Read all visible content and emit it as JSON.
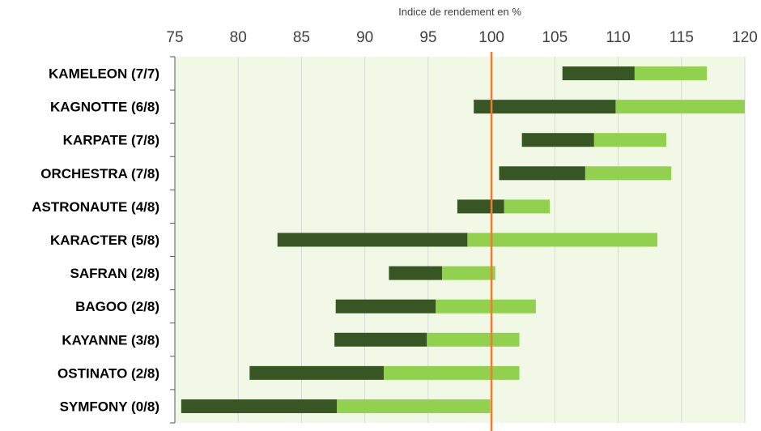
{
  "chart_data": {
    "type": "bar",
    "orientation": "horizontal",
    "stacked": "floating",
    "xlabel": "Indice de rendement en %",
    "xlim": [
      75,
      120
    ],
    "x_ticks": [
      "75",
      "80",
      "85",
      "90",
      "95",
      "100",
      "105",
      "110",
      "115",
      "120"
    ],
    "reference_line": 100,
    "categories": [
      "KAMELEON (7/7)",
      "KAGNOTTE (6/8)",
      "KARPATE (7/8)",
      "ORCHESTRA (7/8)",
      "ASTRONAUTE (4/8)",
      "KARACTER (5/8)",
      "SAFRAN (2/8)",
      "BAGOO (2/8)",
      "KAYANNE (3/8)",
      "OSTINATO (2/8)",
      "SYMFONY (0/8)"
    ],
    "ranges": [
      {
        "min": 105.6,
        "mid": 111.3,
        "max": 117.0
      },
      {
        "min": 98.6,
        "mid": 109.8,
        "max": 120.0
      },
      {
        "min": 102.4,
        "mid": 108.1,
        "max": 113.8
      },
      {
        "min": 100.6,
        "mid": 107.4,
        "max": 114.2
      },
      {
        "min": 97.3,
        "mid": 101.0,
        "max": 104.6
      },
      {
        "min": 83.1,
        "mid": 98.1,
        "max": 113.1
      },
      {
        "min": 91.9,
        "mid": 96.1,
        "max": 100.3
      },
      {
        "min": 87.7,
        "mid": 95.6,
        "max": 103.5
      },
      {
        "min": 87.6,
        "mid": 94.9,
        "max": 102.2
      },
      {
        "min": 80.9,
        "mid": 91.5,
        "max": 102.2
      },
      {
        "min": 75.5,
        "mid": 87.8,
        "max": 99.9
      }
    ],
    "colors": {
      "lower_segment": "#375623",
      "upper_segment": "#92D050",
      "plot_background": "#F1F9E6",
      "gridline": "#D9D9D9",
      "reference_line": "#ED7D31"
    }
  }
}
